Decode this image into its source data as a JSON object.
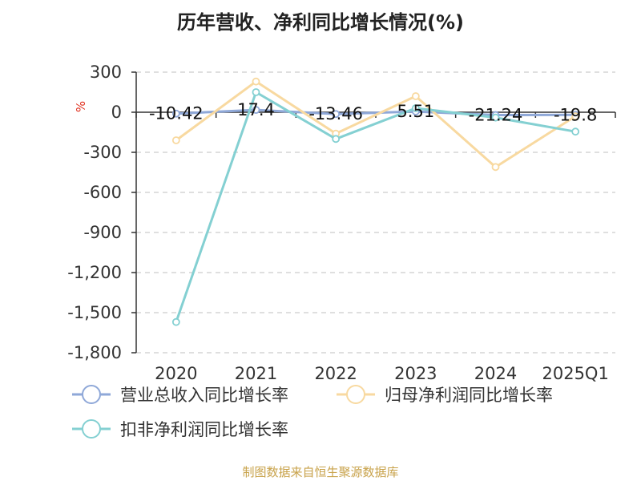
{
  "title": "历年营收、净利同比增长情况(%)",
  "source": "制图数据来自恒生聚源数据库",
  "chart_data": {
    "type": "line",
    "title": "历年营收、净利同比增长情况(%)",
    "ylabel": "%",
    "ylim": [
      -1800,
      300
    ],
    "yticks": [
      300,
      0,
      -300,
      -600,
      -900,
      -1200,
      -1500,
      -1800
    ],
    "ytick_labels": [
      "300",
      "0",
      "-300",
      "-600",
      "-900",
      "-1,200",
      "-1,500",
      "-1,800"
    ],
    "grid": true,
    "legend_position": "bottom",
    "categories": [
      "2020",
      "2021",
      "2022",
      "2023",
      "2024",
      "2025Q1"
    ],
    "series": [
      {
        "name": "营业总收入同比增长率",
        "color": "#8fa8d8",
        "values": [
          -10.42,
          17.4,
          -13.46,
          5.51,
          -21.24,
          -19.8
        ],
        "labels": [
          "-10.42",
          "17.4",
          "-13.46",
          "5.51",
          "-21.24",
          "-19.8"
        ]
      },
      {
        "name": "归母净利润同比增长率",
        "color": "#f8d9a0",
        "values": [
          -210,
          230,
          -160,
          120,
          -410,
          -30
        ]
      },
      {
        "name": "扣非净利润同比增长率",
        "color": "#84d0d2",
        "values": [
          -1570,
          150,
          -200,
          30,
          -40,
          -145
        ]
      }
    ]
  }
}
